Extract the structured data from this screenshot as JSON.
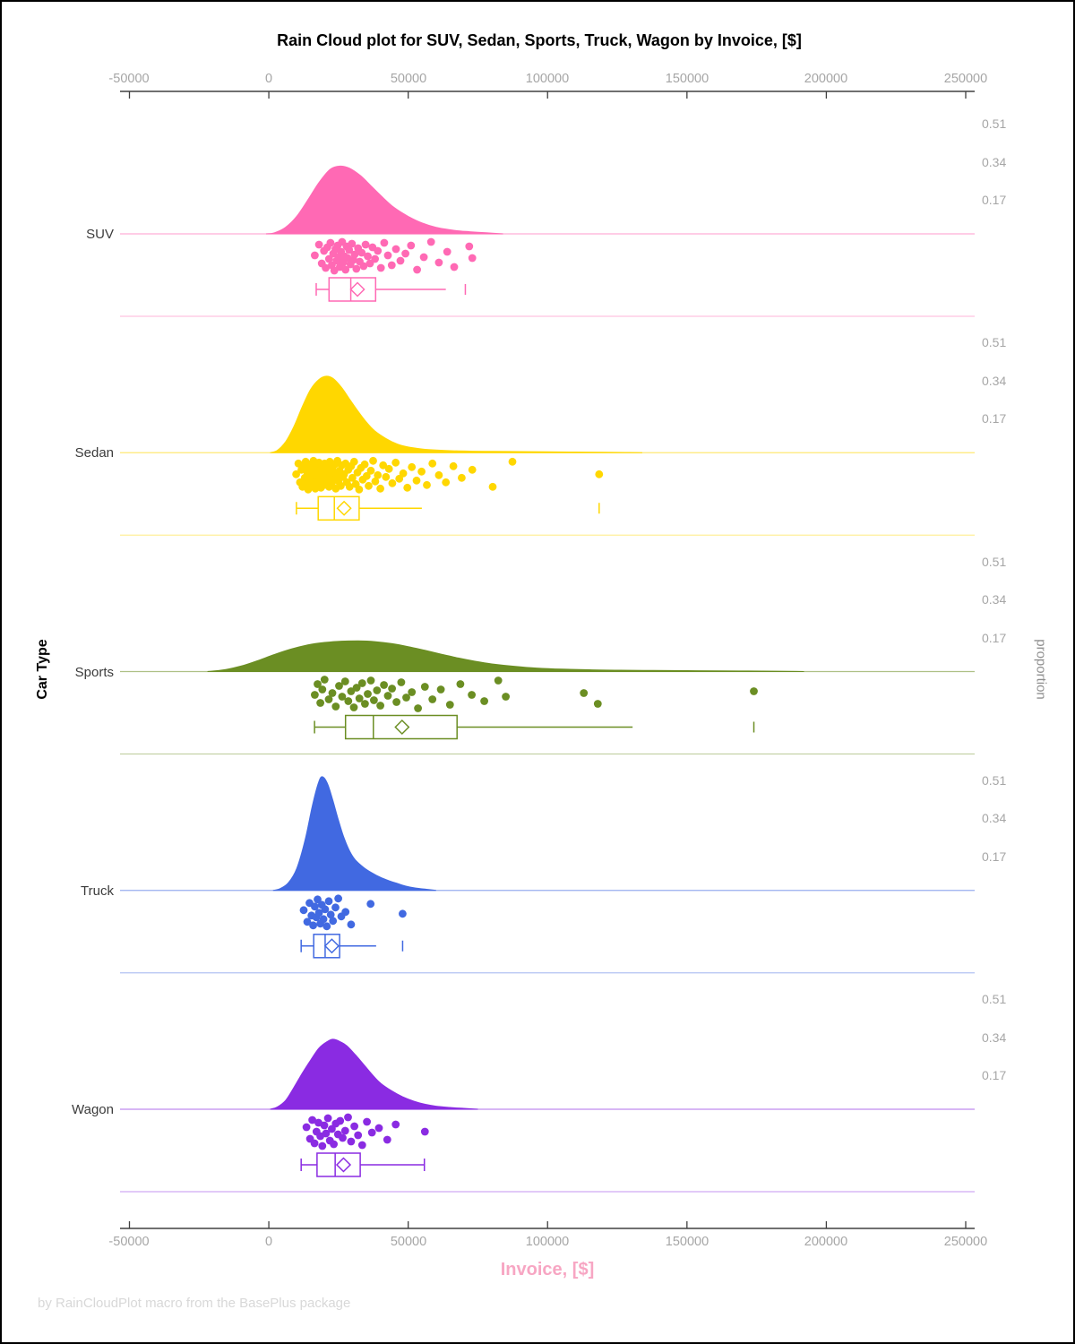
{
  "chart_data": {
    "type": "raincloud",
    "title": "Rain Cloud plot for SUV, Sedan, Sports, Truck, Wagon by Invoice, [$]",
    "xlabel": "Invoice, [$]",
    "ylabel": "Car Type",
    "ylabel_right": "proportion",
    "footer": "by RainCloudPlot macro from the BasePlus package",
    "xlim": [
      -50000,
      250000
    ],
    "x_ticks": [
      -50000,
      0,
      50000,
      100000,
      150000,
      200000,
      250000
    ],
    "x_tick_labels": [
      "-50000",
      "0",
      "50000",
      "100000",
      "150000",
      "200000",
      "250000"
    ],
    "proportion_ticks": [
      0.51,
      0.34,
      0.17
    ],
    "proportion_tick_labels": [
      "0.51",
      "0.34",
      "0.17"
    ],
    "categories": [
      "SUV",
      "Sedan",
      "Sports",
      "Truck",
      "Wagon"
    ],
    "series": [
      {
        "label": "SUV",
        "color": "#FF69B4",
        "density": [
          [
            -1000,
            0
          ],
          [
            2000,
            0.005
          ],
          [
            6000,
            0.03
          ],
          [
            10000,
            0.08
          ],
          [
            14000,
            0.155
          ],
          [
            18000,
            0.235
          ],
          [
            22000,
            0.295
          ],
          [
            25500,
            0.31
          ],
          [
            29000,
            0.3
          ],
          [
            33000,
            0.265
          ],
          [
            37000,
            0.215
          ],
          [
            41000,
            0.165
          ],
          [
            45000,
            0.12
          ],
          [
            50000,
            0.08
          ],
          [
            55000,
            0.05
          ],
          [
            60000,
            0.03
          ],
          [
            66000,
            0.017
          ],
          [
            72000,
            0.01
          ],
          [
            78000,
            0.005
          ],
          [
            84000,
            0
          ]
        ],
        "rain_x": [
          16500,
          18000,
          19000,
          19800,
          20400,
          21000,
          21600,
          22100,
          22600,
          23100,
          23500,
          23900,
          24300,
          24700,
          25100,
          25500,
          25900,
          26300,
          26700,
          27100,
          27500,
          27900,
          28300,
          28800,
          29300,
          29800,
          30300,
          30800,
          31400,
          32000,
          32600,
          33300,
          34000,
          34700,
          35500,
          36300,
          37200,
          38100,
          39100,
          40200,
          41400,
          42700,
          44100,
          45600,
          47200,
          49000,
          51000,
          53200,
          55600,
          58200,
          61000,
          64000,
          66500,
          71900,
          73000
        ],
        "rain_dy": [
          24,
          12,
          33,
          19,
          38,
          15,
          28,
          10,
          35,
          22,
          41,
          17,
          30,
          13,
          26,
          37,
          20,
          9,
          32,
          25,
          40,
          14,
          27,
          18,
          34,
          11,
          29,
          23,
          39,
          16,
          31,
          21,
          36,
          12,
          25,
          33,
          15,
          28,
          19,
          38,
          10,
          24,
          35,
          17,
          30,
          22,
          13,
          40,
          26,
          9,
          32,
          20,
          37,
          14,
          27
        ],
        "box": {
          "whisker_low": 17000,
          "q1": 21600,
          "median": 29400,
          "mean": 31800,
          "q3": 38300,
          "whisker_high": 63500,
          "outliers": [
            70500
          ],
          "cap_low": true,
          "cap_high": false
        }
      },
      {
        "label": "Sedan",
        "color": "#FFD700",
        "density": [
          [
            500,
            0
          ],
          [
            3000,
            0.01
          ],
          [
            6000,
            0.05
          ],
          [
            9000,
            0.12
          ],
          [
            12000,
            0.21
          ],
          [
            15000,
            0.29
          ],
          [
            18000,
            0.335
          ],
          [
            20500,
            0.35
          ],
          [
            23000,
            0.34
          ],
          [
            26000,
            0.3
          ],
          [
            29000,
            0.245
          ],
          [
            32000,
            0.19
          ],
          [
            35000,
            0.14
          ],
          [
            38000,
            0.1
          ],
          [
            42000,
            0.065
          ],
          [
            46000,
            0.04
          ],
          [
            50000,
            0.026
          ],
          [
            55000,
            0.017
          ],
          [
            60000,
            0.012
          ],
          [
            66000,
            0.009
          ],
          [
            72000,
            0.007
          ],
          [
            80000,
            0.006
          ],
          [
            90000,
            0.005
          ],
          [
            100000,
            0.004
          ],
          [
            110000,
            0.003
          ],
          [
            120000,
            0.002
          ],
          [
            128000,
            0.001
          ],
          [
            134000,
            0
          ]
        ],
        "rain_x": [
          9800,
          10600,
          11200,
          11700,
          12100,
          12500,
          12900,
          13200,
          13500,
          13800,
          14100,
          14400,
          14700,
          15000,
          15200,
          15500,
          15700,
          16000,
          16200,
          16500,
          16700,
          17000,
          17200,
          17500,
          17700,
          18000,
          18200,
          18500,
          18700,
          19000,
          19200,
          19500,
          19700,
          20000,
          20200,
          20500,
          20700,
          21000,
          21300,
          21600,
          21900,
          22200,
          22500,
          22800,
          23100,
          23400,
          23700,
          24000,
          24300,
          24600,
          25000,
          25400,
          25800,
          26200,
          26600,
          27000,
          27500,
          28000,
          28500,
          29000,
          29500,
          30000,
          30600,
          31200,
          31800,
          32400,
          33000,
          33700,
          34400,
          35100,
          35800,
          36600,
          37400,
          38200,
          39100,
          40000,
          41000,
          42000,
          43100,
          44300,
          45500,
          46800,
          48200,
          49700,
          51300,
          53000,
          54800,
          56700,
          58700,
          61000,
          63500,
          66200,
          69200,
          73000,
          80300,
          87400,
          118500
        ],
        "rain_dy": [
          24,
          12,
          33,
          19,
          38,
          15,
          28,
          10,
          35,
          22,
          41,
          17,
          30,
          13,
          26,
          37,
          20,
          9,
          32,
          25,
          40,
          14,
          27,
          18,
          34,
          11,
          29,
          23,
          39,
          16,
          31,
          21,
          36,
          12,
          25,
          33,
          15,
          28,
          19,
          38,
          10,
          24,
          35,
          17,
          30,
          22,
          13,
          40,
          26,
          9,
          32,
          20,
          37,
          14,
          27,
          24,
          12,
          33,
          19,
          38,
          15,
          28,
          10,
          35,
          22,
          41,
          17,
          30,
          13,
          26,
          37,
          20,
          9,
          32,
          25,
          40,
          14,
          27,
          18,
          34,
          11,
          29,
          23,
          39,
          16,
          31,
          21,
          36,
          12,
          25,
          33,
          15,
          28,
          19,
          38,
          10,
          24
        ],
        "box": {
          "whisker_low": 9900,
          "q1": 17700,
          "median": 23500,
          "mean": 27000,
          "q3": 32400,
          "whisker_high": 54900,
          "outliers": [
            118500
          ],
          "cap_low": true,
          "cap_high": false
        }
      },
      {
        "label": "Sports",
        "color": "#6B8E23",
        "density": [
          [
            -22000,
            0
          ],
          [
            -16000,
            0.008
          ],
          [
            -10000,
            0.025
          ],
          [
            -4000,
            0.05
          ],
          [
            2000,
            0.078
          ],
          [
            8000,
            0.103
          ],
          [
            14000,
            0.122
          ],
          [
            20000,
            0.133
          ],
          [
            26000,
            0.139
          ],
          [
            32000,
            0.14
          ],
          [
            38000,
            0.137
          ],
          [
            44000,
            0.128
          ],
          [
            50000,
            0.114
          ],
          [
            56000,
            0.097
          ],
          [
            62000,
            0.079
          ],
          [
            68000,
            0.062
          ],
          [
            74000,
            0.047
          ],
          [
            80000,
            0.035
          ],
          [
            88000,
            0.024
          ],
          [
            96000,
            0.016
          ],
          [
            105000,
            0.011
          ],
          [
            115000,
            0.008
          ],
          [
            126000,
            0.006
          ],
          [
            138000,
            0.005
          ],
          [
            150000,
            0.004
          ],
          [
            162000,
            0.003
          ],
          [
            172000,
            0.0025
          ],
          [
            182000,
            0.0015
          ],
          [
            192000,
            0
          ]
        ],
        "rain_x": [
          16500,
          17500,
          18500,
          19200,
          20000,
          21500,
          22800,
          24000,
          25200,
          26300,
          27400,
          28500,
          29500,
          30500,
          31500,
          32500,
          33500,
          34500,
          35500,
          36600,
          37700,
          38800,
          40000,
          41300,
          42700,
          44200,
          45800,
          47500,
          49300,
          51300,
          53500,
          56000,
          58700,
          61700,
          65000,
          68700,
          72800,
          77300,
          82300,
          85000,
          113000,
          118000,
          174000
        ],
        "rain_dy": [
          26,
          14,
          35,
          20,
          9,
          31,
          24,
          39,
          16,
          28,
          11,
          33,
          22,
          40,
          18,
          30,
          13,
          36,
          25,
          10,
          32,
          21,
          38,
          15,
          27,
          19,
          34,
          12,
          29,
          23,
          41,
          17,
          31,
          20,
          37,
          14,
          26,
          33,
          10,
          28,
          24,
          36,
          22
        ],
        "box": {
          "whisker_low": 16400,
          "q1": 27500,
          "median": 37500,
          "mean": 47800,
          "q3": 67500,
          "whisker_high": 130500,
          "outliers": [
            174000
          ],
          "cap_low": true,
          "cap_high": false
        }
      },
      {
        "label": "Truck",
        "color": "#4169E1",
        "density": [
          [
            1500,
            0
          ],
          [
            4000,
            0.008
          ],
          [
            7000,
            0.035
          ],
          [
            10000,
            0.1
          ],
          [
            13000,
            0.23
          ],
          [
            15500,
            0.38
          ],
          [
            17500,
            0.48
          ],
          [
            19000,
            0.52
          ],
          [
            21000,
            0.49
          ],
          [
            23000,
            0.41
          ],
          [
            25000,
            0.32
          ],
          [
            27000,
            0.24
          ],
          [
            29000,
            0.18
          ],
          [
            31000,
            0.14
          ],
          [
            34000,
            0.105
          ],
          [
            37000,
            0.08
          ],
          [
            40000,
            0.06
          ],
          [
            43000,
            0.045
          ],
          [
            46000,
            0.032
          ],
          [
            49000,
            0.02
          ],
          [
            52000,
            0.012
          ],
          [
            56000,
            0.006
          ],
          [
            60000,
            0
          ]
        ],
        "rain_x": [
          12500,
          13800,
          14600,
          15300,
          15900,
          16500,
          17000,
          17500,
          18000,
          18500,
          19000,
          19600,
          20200,
          20800,
          21500,
          22200,
          23000,
          23900,
          24900,
          26000,
          27500,
          29500,
          36500,
          48000
        ],
        "rain_dy": [
          22,
          35,
          14,
          28,
          39,
          18,
          30,
          10,
          25,
          37,
          16,
          32,
          21,
          40,
          12,
          27,
          34,
          19,
          9,
          29,
          24,
          38,
          15,
          26
        ],
        "box": {
          "whisker_low": 11600,
          "q1": 16100,
          "median": 20200,
          "mean": 22600,
          "q3": 25400,
          "whisker_high": 38500,
          "outliers": [
            48000
          ],
          "cap_low": true,
          "cap_high": false
        }
      },
      {
        "label": "Wagon",
        "color": "#8A2BE2",
        "density": [
          [
            500,
            0
          ],
          [
            3000,
            0.01
          ],
          [
            6000,
            0.04
          ],
          [
            9000,
            0.1
          ],
          [
            12000,
            0.165
          ],
          [
            15000,
            0.225
          ],
          [
            18000,
            0.28
          ],
          [
            21000,
            0.31
          ],
          [
            23000,
            0.32
          ],
          [
            25500,
            0.31
          ],
          [
            28000,
            0.29
          ],
          [
            31000,
            0.25
          ],
          [
            34000,
            0.205
          ],
          [
            37000,
            0.16
          ],
          [
            40000,
            0.12
          ],
          [
            44000,
            0.085
          ],
          [
            48000,
            0.057
          ],
          [
            52000,
            0.037
          ],
          [
            56000,
            0.023
          ],
          [
            60000,
            0.014
          ],
          [
            65000,
            0.008
          ],
          [
            70000,
            0.004
          ],
          [
            75000,
            0
          ]
        ],
        "rain_x": [
          13500,
          14800,
          15600,
          16400,
          17100,
          17800,
          18500,
          19200,
          19900,
          20500,
          21200,
          21900,
          22600,
          23300,
          24000,
          24800,
          25600,
          26500,
          27400,
          28400,
          29500,
          30700,
          32000,
          33500,
          35200,
          37000,
          39500,
          42500,
          45500,
          56000
        ],
        "rain_dy": [
          20,
          33,
          12,
          38,
          25,
          15,
          30,
          41,
          18,
          27,
          10,
          35,
          22,
          39,
          16,
          28,
          13,
          32,
          24,
          9,
          36,
          19,
          29,
          40,
          14,
          26,
          21,
          34,
          17,
          25
        ],
        "box": {
          "whisker_low": 11600,
          "q1": 17300,
          "median": 23800,
          "mean": 26800,
          "q3": 32800,
          "whisker_high": 55800,
          "outliers": [],
          "cap_low": true,
          "cap_high": true
        }
      }
    ]
  }
}
